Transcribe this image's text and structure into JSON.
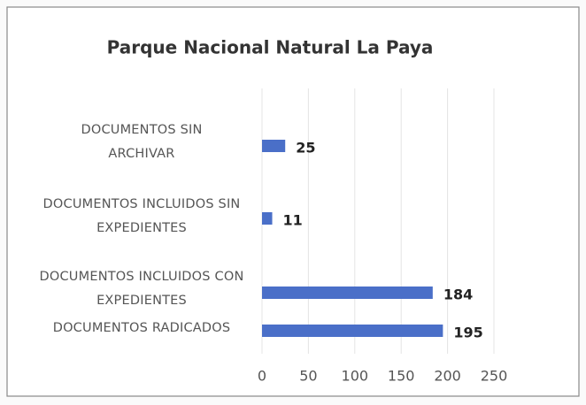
{
  "chart_data": {
    "type": "barh",
    "title": "Parque Nacional Natural La Paya",
    "categories": [
      "DOCUMENTOS SIN ARCHIVAR",
      "DOCUMENTOS INCLUIDOS SIN EXPEDIENTES",
      "DOCUMENTOS INCLUIDOS CON EXPEDIENTES",
      "DOCUMENTOS RADICADOS"
    ],
    "values": [
      25,
      11,
      184,
      195
    ],
    "color": "#4a6fc8",
    "xlim": [
      0,
      250
    ],
    "xticks": [
      0,
      50,
      100,
      150,
      200,
      250
    ],
    "grid": true
  }
}
